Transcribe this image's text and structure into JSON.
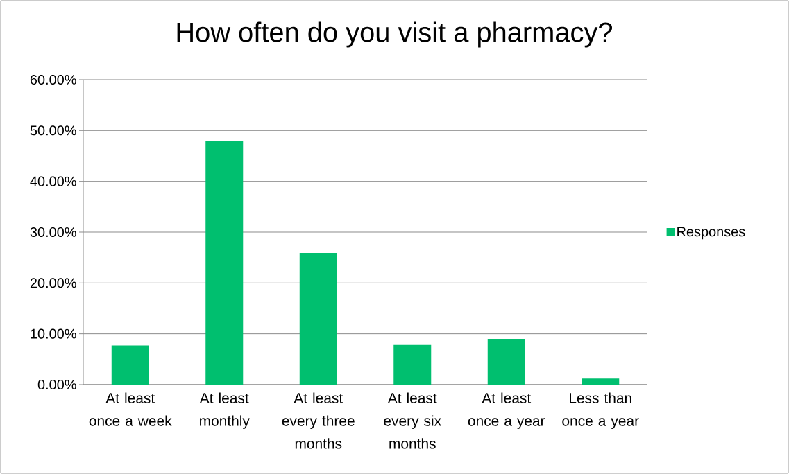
{
  "chart_data": {
    "type": "bar",
    "title": "How often do you visit a pharmacy?",
    "categories": [
      "At least once a week",
      "At least monthly",
      "At least every three months",
      "At least every six months",
      "At least once a year",
      "Less than once a year"
    ],
    "series": [
      {
        "name": "Responses",
        "color": "#00bf6f",
        "values": [
          7.7,
          47.9,
          25.9,
          7.8,
          9.0,
          1.2
        ]
      }
    ],
    "ylim": [
      0,
      60
    ],
    "yticks": [
      {
        "value": 0,
        "label": "0.00%"
      },
      {
        "value": 10,
        "label": "10.00%"
      },
      {
        "value": 20,
        "label": "20.00%"
      },
      {
        "value": 30,
        "label": "30.00%"
      },
      {
        "value": 40,
        "label": "40.00%"
      },
      {
        "value": 50,
        "label": "50.00%"
      },
      {
        "value": 60,
        "label": "60.00%"
      }
    ],
    "grid": "y",
    "legend": "right"
  }
}
